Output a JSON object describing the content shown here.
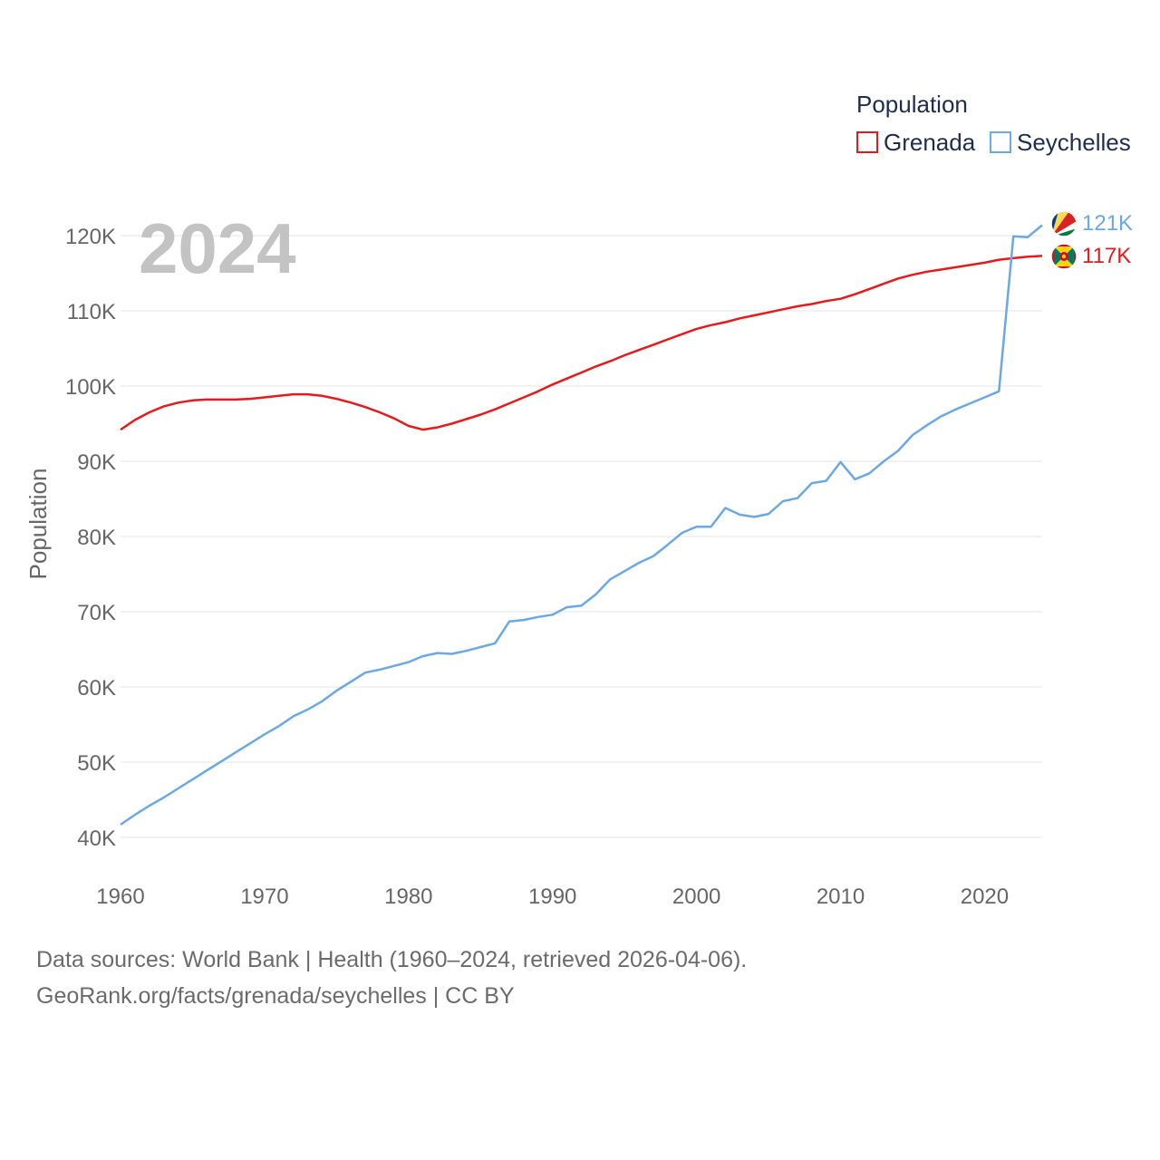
{
  "chart_data": {
    "type": "line",
    "ylabel": "Population",
    "xlabel": "",
    "current_year": "2024",
    "xlim": [
      1960,
      2024
    ],
    "ylim": [
      40000,
      120000
    ],
    "x_ticks": [
      1960,
      1970,
      1980,
      1990,
      2000,
      2010,
      2020
    ],
    "x_tick_labels": [
      "1960",
      "1970",
      "1980",
      "1990",
      "2000",
      "2010",
      "2020"
    ],
    "y_ticks": [
      40000,
      50000,
      60000,
      70000,
      80000,
      90000,
      100000,
      110000,
      120000
    ],
    "y_tick_labels": [
      "40K",
      "50K",
      "60K",
      "70K",
      "80K",
      "90K",
      "100K",
      "110K",
      "120K"
    ],
    "grid": true,
    "legend": {
      "title": "Population",
      "position": "top-right"
    },
    "years": [
      1960,
      1961,
      1962,
      1963,
      1964,
      1965,
      1966,
      1967,
      1968,
      1969,
      1970,
      1971,
      1972,
      1973,
      1974,
      1975,
      1976,
      1977,
      1978,
      1979,
      1980,
      1981,
      1982,
      1983,
      1984,
      1985,
      1986,
      1987,
      1988,
      1989,
      1990,
      1991,
      1992,
      1993,
      1994,
      1995,
      1996,
      1997,
      1998,
      1999,
      2000,
      2001,
      2002,
      2003,
      2004,
      2005,
      2006,
      2007,
      2008,
      2009,
      2010,
      2011,
      2012,
      2013,
      2014,
      2015,
      2016,
      2017,
      2018,
      2019,
      2020,
      2021,
      2022,
      2023,
      2024
    ],
    "series": [
      {
        "name": "Grenada",
        "color": "#e8191a",
        "end_label": "117K",
        "flag": "grenada-flag-icon",
        "values": [
          94200,
          95500,
          96500,
          97300,
          97800,
          98100,
          98200,
          98200,
          98200,
          98300,
          98500,
          98700,
          98900,
          98900,
          98700,
          98300,
          97800,
          97200,
          96500,
          95700,
          94700,
          94200,
          94500,
          95000,
          95600,
          96200,
          96900,
          97700,
          98500,
          99300,
          100200,
          101000,
          101800,
          102600,
          103300,
          104100,
          104800,
          105500,
          106200,
          106900,
          107600,
          108100,
          108500,
          109000,
          109400,
          109800,
          110200,
          110600,
          110900,
          111300,
          111600,
          112200,
          112900,
          113600,
          114300,
          114800,
          115200,
          115500,
          115800,
          116100,
          116400,
          116800,
          117000,
          117200,
          117300
        ]
      },
      {
        "name": "Seychelles",
        "color": "#6aa8e6",
        "end_label": "121K",
        "flag": "seychelles-flag-icon",
        "values": [
          41700,
          43000,
          44200,
          45300,
          46500,
          47700,
          48900,
          50100,
          51300,
          52500,
          53700,
          54800,
          56100,
          57000,
          58100,
          59500,
          60700,
          61900,
          62300,
          62800,
          63300,
          64100,
          64500,
          64400,
          64800,
          65300,
          65800,
          68700,
          68900,
          69300,
          69600,
          70600,
          70800,
          72300,
          74300,
          75400,
          76500,
          77400,
          78900,
          80500,
          81300,
          81300,
          83800,
          82900,
          82600,
          83000,
          84700,
          85100,
          87100,
          87400,
          89900,
          87600,
          88400,
          90000,
          91400,
          93500,
          94800,
          96000,
          96900,
          97700,
          98500,
          99300,
          119900,
          119800,
          121400
        ]
      }
    ]
  },
  "source": {
    "line1": "Data sources: World Bank | Health (1960–2024, retrieved 2026-04-06).",
    "line2": "GeoRank.org/facts/grenada/seychelles | CC BY"
  }
}
